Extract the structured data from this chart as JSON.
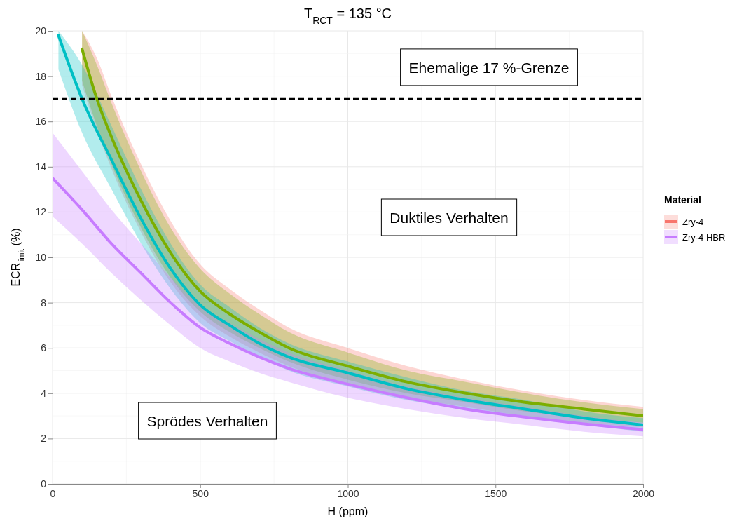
{
  "chart_data": {
    "type": "line",
    "title": "T$_{RCT}$ = 135 °C",
    "xlabel": "H (ppm)",
    "ylabel": "ECR$_{limit}$ (%)",
    "legend_title": "Material",
    "xlim": [
      0,
      2000
    ],
    "xticks": [
      0,
      500,
      1000,
      1500,
      2000
    ],
    "ylim": [
      0,
      20
    ],
    "yticks": [
      0,
      2,
      4,
      6,
      8,
      10,
      12,
      14,
      16,
      18,
      20
    ],
    "grid": true,
    "legend": "right",
    "line_style": "solid",
    "marker": "none",
    "series": [
      {
        "name": "Zry-4",
        "color": "#f8766d",
        "x": [
          100,
          150,
          200,
          300,
          400,
          500,
          600,
          700,
          800,
          1000,
          1200,
          1400,
          1600,
          1800,
          2000
        ],
        "values": [
          null,
          null,
          null,
          null,
          null,
          null,
          null,
          null,
          null,
          null,
          null,
          null,
          null,
          null,
          null
        ],
        "lower": [
          17.6,
          15.6,
          13.9,
          11.1,
          8.9,
          7.4,
          6.5,
          5.8,
          5.2,
          4.4,
          3.8,
          3.4,
          3.0,
          2.7,
          2.5
        ],
        "upper": [
          20.0,
          18.8,
          17.1,
          14.1,
          11.6,
          9.7,
          8.6,
          7.7,
          6.9,
          6.0,
          5.2,
          4.6,
          4.1,
          3.7,
          3.4
        ]
      },
      {
        "color": "#7cae00",
        "x": [
          100,
          150,
          200,
          300,
          400,
          500,
          600,
          700,
          800,
          1000,
          1200,
          1400,
          1600,
          1800,
          2000
        ],
        "values": [
          19.2,
          17.0,
          15.3,
          12.5,
          10.2,
          8.5,
          7.5,
          6.7,
          6.0,
          5.2,
          4.5,
          4.0,
          3.6,
          3.3,
          3.0
        ],
        "lower": [
          17.8,
          15.8,
          14.1,
          11.3,
          9.1,
          7.6,
          6.7,
          6.0,
          5.4,
          4.6,
          4.0,
          3.6,
          3.2,
          2.9,
          2.7
        ],
        "upper": [
          20.0,
          18.5,
          16.8,
          13.8,
          11.3,
          9.5,
          8.4,
          7.5,
          6.7,
          5.8,
          5.0,
          4.5,
          4.0,
          3.6,
          3.3
        ]
      },
      {
        "color": "#00bfc4",
        "x": [
          20,
          100,
          200,
          300,
          400,
          500,
          600,
          700,
          800,
          1000,
          1200,
          1400,
          1600,
          1800,
          2000
        ],
        "values": [
          19.8,
          17.0,
          14.3,
          11.7,
          9.5,
          7.9,
          7.0,
          6.2,
          5.6,
          4.9,
          4.2,
          3.7,
          3.3,
          2.9,
          2.6
        ],
        "lower": [
          18.3,
          15.5,
          13.0,
          10.6,
          8.6,
          7.1,
          6.3,
          5.6,
          5.0,
          4.3,
          3.7,
          3.3,
          2.9,
          2.6,
          2.3
        ],
        "upper": [
          20.0,
          18.5,
          15.8,
          13.0,
          10.6,
          8.8,
          7.8,
          6.9,
          6.2,
          5.4,
          4.7,
          4.1,
          3.7,
          3.2,
          2.9
        ]
      },
      {
        "name": "Zry-4 HBR",
        "color": "#c77cff",
        "x": [
          0,
          100,
          200,
          300,
          400,
          500,
          600,
          700,
          800,
          1000,
          1200,
          1400,
          1600,
          1800,
          2000
        ],
        "values": [
          13.5,
          12.1,
          10.6,
          9.3,
          8.0,
          6.9,
          6.2,
          5.6,
          5.1,
          4.4,
          3.8,
          3.3,
          2.95,
          2.65,
          2.4
        ],
        "lower": [
          11.8,
          10.6,
          9.3,
          8.1,
          7.0,
          6.0,
          5.4,
          4.9,
          4.5,
          3.8,
          3.3,
          2.9,
          2.6,
          2.3,
          2.1
        ],
        "upper": [
          15.5,
          13.8,
          12.1,
          10.6,
          9.1,
          7.9,
          7.1,
          6.4,
          5.8,
          5.0,
          4.3,
          3.8,
          3.4,
          3.0,
          2.7
        ]
      }
    ],
    "ref_lines": [
      {
        "axis": "y",
        "value": 17,
        "label": "Ehemalige 17 %-Grenze",
        "color": "#000000",
        "line_style": "dashed"
      }
    ],
    "annotations": [
      "Duktiles Verhalten",
      "Sprödes Verhalten"
    ]
  }
}
